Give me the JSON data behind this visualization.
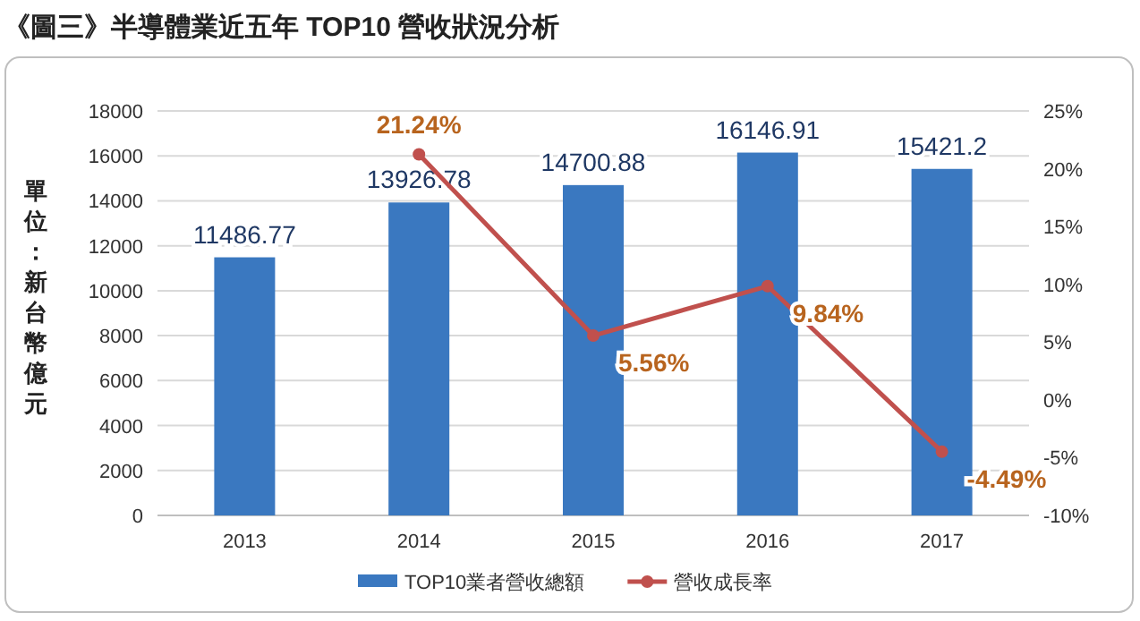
{
  "chart_data": {
    "type": "bar",
    "title": "《圖三》半導體業近五年 TOP10 營收狀況分析",
    "ylabel": "單位：新台幣億元",
    "categories": [
      "2013",
      "2014",
      "2015",
      "2016",
      "2017"
    ],
    "series": [
      {
        "name": "TOP10業者營收總額",
        "color": "#3a78c0",
        "values": [
          11486.77,
          13926.78,
          14700.88,
          16146.91,
          15421.2
        ],
        "value_labels": [
          "11486.77",
          "13926.78",
          "14700.88",
          "16146.91",
          "15421.2"
        ]
      },
      {
        "name": "營收成長率",
        "type": "line",
        "axis": "y2",
        "color": "#c0504d",
        "marker": "circle",
        "values": [
          null,
          21.24,
          5.56,
          9.84,
          -4.49
        ],
        "value_labels": [
          null,
          "21.24%",
          "5.56%",
          "9.84%",
          "-4.49%"
        ]
      }
    ],
    "ylim": [
      0,
      18000
    ],
    "yticks": [
      0,
      2000,
      4000,
      6000,
      8000,
      10000,
      12000,
      14000,
      16000,
      18000
    ],
    "y2lim": [
      -10,
      25
    ],
    "y2ticks": [
      {
        "value": -10,
        "label": "-10%"
      },
      {
        "value": -5,
        "label": "-5%"
      },
      {
        "value": 0,
        "label": "0%"
      },
      {
        "value": 5,
        "label": "5%"
      },
      {
        "value": 10,
        "label": "10%"
      },
      {
        "value": 15,
        "label": "15%"
      },
      {
        "value": 20,
        "label": "20%"
      },
      {
        "value": 25,
        "label": "25%"
      }
    ],
    "grid": "y",
    "legend": "bottom"
  }
}
